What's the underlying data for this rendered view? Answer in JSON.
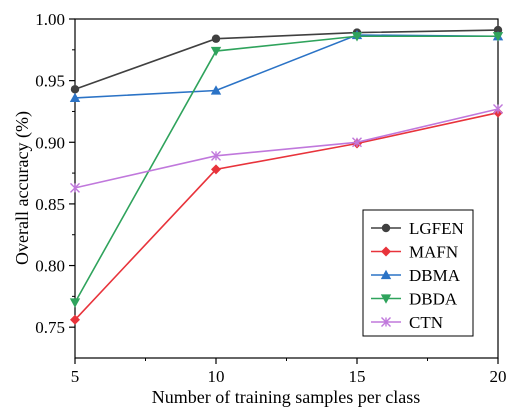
{
  "chart_data": {
    "type": "line",
    "xlabel": "Number of training samples per class",
    "ylabel": "Overall accuracy (%)",
    "x": [
      5,
      10,
      15,
      20
    ],
    "xlim": [
      5,
      20
    ],
    "ylim": [
      0.725,
      1.0
    ],
    "xticks": [
      "5",
      "10",
      "15",
      "20"
    ],
    "yticks": [
      "0.75",
      "0.80",
      "0.85",
      "0.90",
      "0.95",
      "1.00"
    ],
    "grid": false,
    "legend_position": "bottom-right",
    "series": [
      {
        "name": "LGFEN",
        "color": "#404040",
        "marker": "circle",
        "values": [
          0.943,
          0.984,
          0.989,
          0.991
        ]
      },
      {
        "name": "MAFN",
        "color": "#e8333b",
        "marker": "diamond",
        "values": [
          0.756,
          0.878,
          0.899,
          0.924
        ]
      },
      {
        "name": "DBMA",
        "color": "#2b73c6",
        "marker": "triangle-up",
        "values": [
          0.936,
          0.942,
          0.987,
          0.986
        ]
      },
      {
        "name": "DBDA",
        "color": "#2fa35c",
        "marker": "triangle-down",
        "values": [
          0.77,
          0.974,
          0.986,
          0.986
        ]
      },
      {
        "name": "CTN",
        "color": "#c078dc",
        "marker": "star",
        "values": [
          0.863,
          0.889,
          0.9,
          0.927
        ]
      }
    ]
  }
}
